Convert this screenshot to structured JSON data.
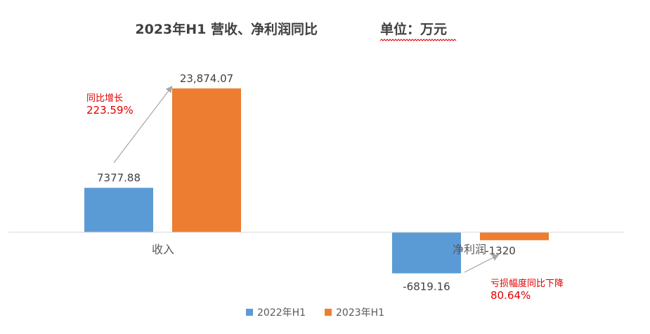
{
  "chart_data": {
    "type": "bar",
    "title": "2023年H1 营收、净利润同比",
    "subtitle": "单位：万元",
    "categories": [
      "收入",
      "净利润"
    ],
    "series": [
      {
        "name": "2022年H1",
        "color": "#5B9BD5",
        "values": [
          7377.88,
          -6819.16
        ],
        "labels": [
          "7377.88",
          "-6819.16"
        ]
      },
      {
        "name": "2023年H1",
        "color": "#ED7D31",
        "values": [
          23874.07,
          -1320
        ],
        "labels": [
          "23,874.07",
          "-1320"
        ]
      }
    ],
    "annotations": [
      {
        "text": "同比增长",
        "value_text": "223.59%",
        "color": "#E00000"
      },
      {
        "text": "亏损幅度同比下降",
        "value_text": "80.64%",
        "color": "#E00000"
      }
    ],
    "legend_position": "bottom",
    "grid": false
  }
}
